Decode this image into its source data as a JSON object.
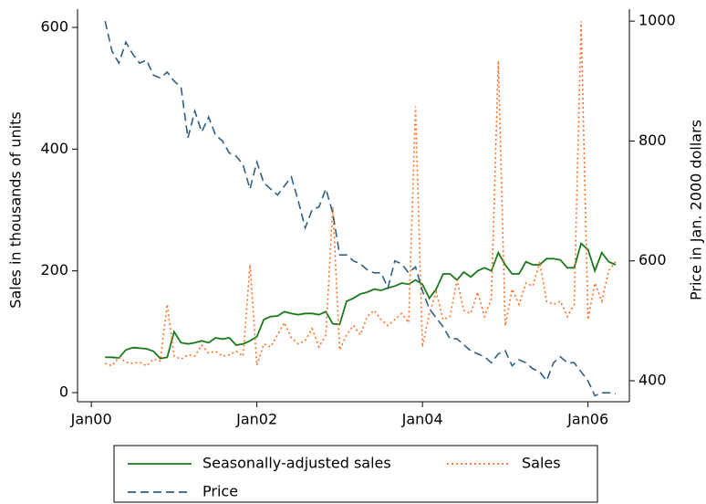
{
  "chart_data": {
    "type": "line",
    "ylabel": "Sales in thousands of units",
    "y2label": "Price in Jan. 2000 dollars",
    "x": [
      "Mar00",
      "Apr00",
      "May00",
      "Jun00",
      "Jul00",
      "Aug00",
      "Sep00",
      "Oct00",
      "Nov00",
      "Dec00",
      "Jan01",
      "Feb01",
      "Mar01",
      "Apr01",
      "May01",
      "Jun01",
      "Jul01",
      "Aug01",
      "Sep01",
      "Oct01",
      "Nov01",
      "Dec01",
      "Jan02",
      "Feb02",
      "Mar02",
      "Apr02",
      "May02",
      "Jun02",
      "Jul02",
      "Aug02",
      "Sep02",
      "Oct02",
      "Nov02",
      "Dec02",
      "Jan03",
      "Feb03",
      "Mar03",
      "Apr03",
      "May03",
      "Jun03",
      "Jul03",
      "Aug03",
      "Sep03",
      "Oct03",
      "Nov03",
      "Dec03",
      "Jan04",
      "Feb04",
      "Mar04",
      "Apr04",
      "May04",
      "Jun04",
      "Jul04",
      "Aug04",
      "Sep04",
      "Oct04",
      "Nov04",
      "Dec04",
      "Jan05",
      "Feb05",
      "Mar05",
      "Apr05",
      "May05",
      "Jun05",
      "Jul05",
      "Aug05",
      "Sep05",
      "Oct05",
      "Nov05",
      "Dec05",
      "Jan06",
      "Feb06",
      "Mar06",
      "Apr06",
      "May06"
    ],
    "xticks": [
      "Jan00",
      "Jan02",
      "Jan04",
      "Jan06"
    ],
    "ylim": [
      -15,
      630
    ],
    "yticks": [
      0,
      200,
      400,
      600
    ],
    "y2lim": [
      365,
      1020
    ],
    "y2ticks": [
      400,
      600,
      800,
      1000
    ],
    "series": [
      {
        "name": "Seasonally-adjusted sales",
        "color": "#1a7a1a",
        "style": "solid",
        "values": [
          58,
          58,
          57,
          70,
          74,
          73,
          72,
          68,
          56,
          58,
          100,
          82,
          80,
          82,
          85,
          82,
          90,
          88,
          90,
          78,
          80,
          85,
          92,
          120,
          125,
          126,
          133,
          130,
          128,
          130,
          130,
          128,
          133,
          113,
          112,
          150,
          155,
          162,
          165,
          170,
          168,
          172,
          175,
          180,
          178,
          185,
          178,
          155,
          170,
          195,
          195,
          185,
          198,
          190,
          200,
          205,
          200,
          230,
          210,
          195,
          195,
          215,
          210,
          210,
          220,
          220,
          218,
          205,
          205,
          245,
          235,
          200,
          230,
          215,
          210
        ]
      },
      {
        "name": "Sales",
        "color": "#ff6f26",
        "style": "dotted",
        "values": [
          48,
          44,
          58,
          50,
          48,
          50,
          44,
          55,
          52,
          145,
          60,
          55,
          62,
          60,
          78,
          65,
          68,
          60,
          62,
          68,
          60,
          210,
          45,
          80,
          75,
          95,
          115,
          90,
          80,
          85,
          105,
          75,
          95,
          305,
          70,
          95,
          110,
          95,
          125,
          135,
          120,
          110,
          120,
          130,
          115,
          470,
          75,
          130,
          165,
          120,
          125,
          185,
          135,
          130,
          165,
          125,
          155,
          545,
          110,
          170,
          145,
          180,
          175,
          215,
          150,
          145,
          150,
          125,
          145,
          610,
          120,
          180,
          150,
          200,
          215
        ]
      },
      {
        "name": "Price",
        "color": "#2e5f84",
        "style": "dashed",
        "axis": "y2",
        "values": [
          1000,
          950,
          930,
          965,
          945,
          930,
          935,
          910,
          905,
          915,
          900,
          890,
          805,
          850,
          815,
          840,
          810,
          800,
          780,
          775,
          760,
          720,
          765,
          730,
          720,
          710,
          725,
          740,
          700,
          655,
          685,
          690,
          720,
          680,
          610,
          610,
          600,
          595,
          585,
          580,
          580,
          555,
          600,
          595,
          580,
          590,
          550,
          520,
          505,
          490,
          470,
          470,
          460,
          450,
          445,
          440,
          430,
          445,
          450,
          425,
          435,
          430,
          420,
          415,
          400,
          430,
          440,
          430,
          430,
          415,
          400,
          375,
          380,
          380,
          378
        ]
      }
    ]
  }
}
